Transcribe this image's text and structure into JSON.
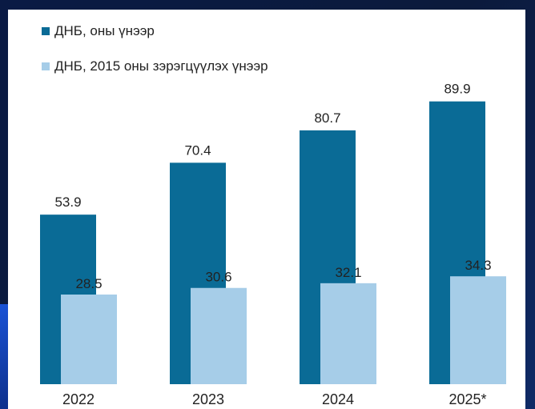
{
  "chart_data": {
    "type": "bar",
    "categories": [
      "2022",
      "2023",
      "2024",
      "2025*"
    ],
    "series": [
      {
        "name": "ДНБ, оны үнээр",
        "values": [
          53.9,
          70.4,
          80.7,
          89.9
        ],
        "color": "#0a6b96"
      },
      {
        "name": "ДНБ, 2015 оны зэрэгцүүлэх үнээр",
        "values": [
          28.5,
          30.6,
          32.1,
          34.3
        ],
        "color": "#a6cde8"
      }
    ],
    "data_labels": {
      "series0": [
        "53.9",
        "70.4",
        "80.7",
        "89.9"
      ],
      "series1": [
        "28.5",
        "30.6",
        "32.1",
        "34.3"
      ]
    },
    "ylim": [
      0,
      100
    ],
    "grid": false,
    "legend_position": "top-left",
    "title": "",
    "xlabel": "",
    "ylabel": ""
  }
}
